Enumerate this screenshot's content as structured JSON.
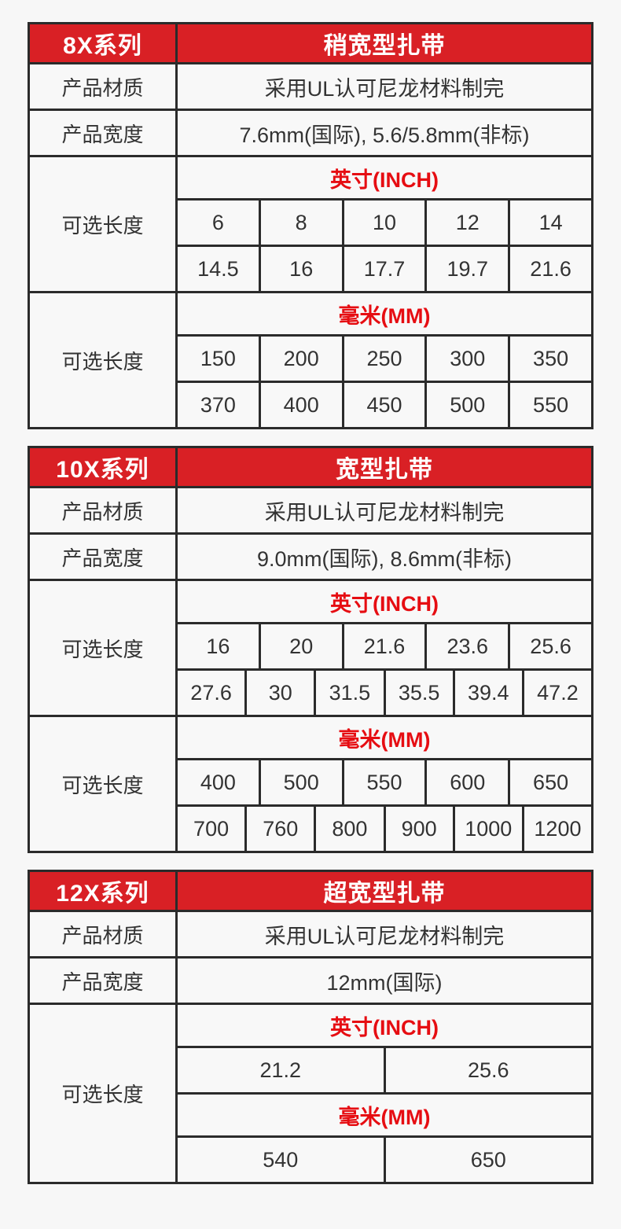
{
  "page": {
    "background": "#f7f7f7"
  },
  "colors": {
    "header_bg": "#d92025",
    "header_text": "#ffffff",
    "accent_red_text": "#e60d12",
    "border": "#2b2b2b",
    "cell_bg": "#f8f8f8",
    "body_text": "#333333"
  },
  "labels": {
    "material": "产品材质",
    "width": "产品宽度",
    "length": "可选长度",
    "inch": "英寸(INCH)",
    "mm": "毫米(MM)"
  },
  "tables": [
    {
      "id": "8x",
      "series": "8X系列",
      "type": "稍宽型扎带",
      "material": "采用UL认可尼龙材料制完",
      "width": "7.6mm(国际), 5.6/5.8mm(非标)",
      "combined_length_block": false,
      "inch_rows": [
        [
          "6",
          "8",
          "10",
          "12",
          "14"
        ],
        [
          "14.5",
          "16",
          "17.7",
          "19.7",
          "21.6"
        ]
      ],
      "mm_rows": [
        [
          "150",
          "200",
          "250",
          "300",
          "350"
        ],
        [
          "370",
          "400",
          "450",
          "500",
          "550"
        ]
      ]
    },
    {
      "id": "10x",
      "series": "10X系列",
      "type": "宽型扎带",
      "material": "采用UL认可尼龙材料制完",
      "width": "9.0mm(国际), 8.6mm(非标)",
      "combined_length_block": false,
      "inch_rows": [
        [
          "16",
          "20",
          "21.6",
          "23.6",
          "25.6"
        ],
        [
          "27.6",
          "30",
          "31.5",
          "35.5",
          "39.4",
          "47.2"
        ]
      ],
      "mm_rows": [
        [
          "400",
          "500",
          "550",
          "600",
          "650"
        ],
        [
          "700",
          "760",
          "800",
          "900",
          "1000",
          "1200"
        ]
      ]
    },
    {
      "id": "12x",
      "series": "12X系列",
      "type": "超宽型扎带",
      "material": "采用UL认可尼龙材料制完",
      "width": "12mm(国际)",
      "combined_length_block": true,
      "inch_rows": [
        [
          "21.2",
          "25.6"
        ]
      ],
      "mm_rows": [
        [
          "540",
          "650"
        ]
      ]
    }
  ]
}
